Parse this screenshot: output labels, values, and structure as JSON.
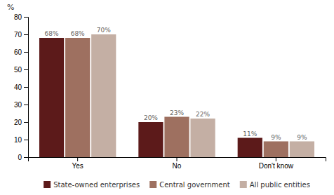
{
  "chart_data": {
    "type": "bar",
    "categories": [
      "Yes",
      "No",
      "Don't know"
    ],
    "series": [
      {
        "name": "State-owned enterprises",
        "color": "#5C1A1A",
        "values": [
          68,
          20,
          11
        ],
        "value_labels": [
          "68%",
          "20%",
          "11%"
        ]
      },
      {
        "name": "Central government",
        "color": "#9E7060",
        "values": [
          68,
          23,
          9
        ],
        "value_labels": [
          "68%",
          "23%",
          "9%"
        ]
      },
      {
        "name": "All public entities",
        "color": "#C4AFA4",
        "values": [
          70,
          22,
          9
        ],
        "value_labels": [
          "70%",
          "22%",
          "9%"
        ]
      }
    ],
    "y_label": "%",
    "ylim": [
      0,
      80
    ],
    "yticks": [
      0,
      10,
      20,
      30,
      40,
      50,
      60,
      70,
      80
    ],
    "data_labels": true,
    "grid": false,
    "legend": "bottom"
  }
}
